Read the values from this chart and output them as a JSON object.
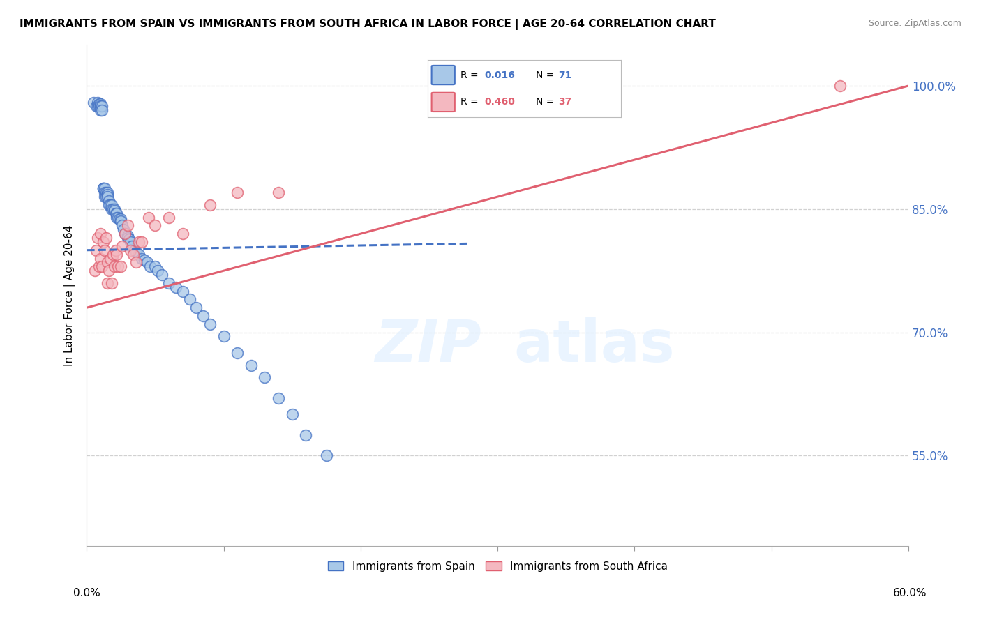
{
  "title": "IMMIGRANTS FROM SPAIN VS IMMIGRANTS FROM SOUTH AFRICA IN LABOR FORCE | AGE 20-64 CORRELATION CHART",
  "source": "Source: ZipAtlas.com",
  "ylabel": "In Labor Force | Age 20-64",
  "ytick_labels": [
    "100.0%",
    "85.0%",
    "70.0%",
    "55.0%"
  ],
  "ytick_values": [
    1.0,
    0.85,
    0.7,
    0.55
  ],
  "xmin": 0.0,
  "xmax": 0.6,
  "ymin": 0.44,
  "ymax": 1.05,
  "color_spain": "#a8c8e8",
  "color_south_africa": "#f4b8c0",
  "color_spain_edge": "#4472c4",
  "color_sa_edge": "#e06070",
  "color_spain_line": "#4472c4",
  "color_sa_line": "#e06070",
  "scatter_spain_x": [
    0.005,
    0.007,
    0.008,
    0.008,
    0.009,
    0.009,
    0.01,
    0.01,
    0.01,
    0.01,
    0.011,
    0.011,
    0.012,
    0.012,
    0.012,
    0.013,
    0.013,
    0.013,
    0.014,
    0.014,
    0.015,
    0.015,
    0.015,
    0.016,
    0.016,
    0.017,
    0.018,
    0.018,
    0.019,
    0.02,
    0.02,
    0.021,
    0.022,
    0.022,
    0.023,
    0.024,
    0.025,
    0.025,
    0.026,
    0.027,
    0.028,
    0.03,
    0.03,
    0.031,
    0.032,
    0.033,
    0.035,
    0.036,
    0.038,
    0.04,
    0.042,
    0.044,
    0.046,
    0.05,
    0.052,
    0.055,
    0.06,
    0.065,
    0.07,
    0.075,
    0.08,
    0.085,
    0.09,
    0.1,
    0.11,
    0.12,
    0.13,
    0.14,
    0.15,
    0.16,
    0.175
  ],
  "scatter_spain_y": [
    0.98,
    0.975,
    0.98,
    0.975,
    0.978,
    0.975,
    0.975,
    0.978,
    0.975,
    0.97,
    0.975,
    0.97,
    0.875,
    0.875,
    0.875,
    0.875,
    0.87,
    0.865,
    0.87,
    0.865,
    0.87,
    0.868,
    0.865,
    0.86,
    0.855,
    0.855,
    0.855,
    0.85,
    0.85,
    0.85,
    0.848,
    0.845,
    0.845,
    0.84,
    0.84,
    0.838,
    0.838,
    0.835,
    0.83,
    0.825,
    0.82,
    0.818,
    0.815,
    0.813,
    0.81,
    0.805,
    0.8,
    0.798,
    0.795,
    0.79,
    0.788,
    0.785,
    0.78,
    0.78,
    0.775,
    0.77,
    0.76,
    0.755,
    0.75,
    0.74,
    0.73,
    0.72,
    0.71,
    0.695,
    0.675,
    0.66,
    0.645,
    0.62,
    0.6,
    0.575,
    0.55
  ],
  "scatter_sa_x": [
    0.006,
    0.007,
    0.008,
    0.009,
    0.01,
    0.01,
    0.011,
    0.012,
    0.013,
    0.014,
    0.015,
    0.015,
    0.016,
    0.017,
    0.018,
    0.019,
    0.02,
    0.021,
    0.022,
    0.023,
    0.025,
    0.026,
    0.028,
    0.03,
    0.032,
    0.034,
    0.036,
    0.038,
    0.04,
    0.045,
    0.05,
    0.06,
    0.07,
    0.09,
    0.11,
    0.14,
    0.55
  ],
  "scatter_sa_y": [
    0.775,
    0.8,
    0.815,
    0.78,
    0.82,
    0.79,
    0.78,
    0.81,
    0.8,
    0.815,
    0.785,
    0.76,
    0.775,
    0.79,
    0.76,
    0.795,
    0.78,
    0.8,
    0.795,
    0.78,
    0.78,
    0.805,
    0.82,
    0.83,
    0.8,
    0.795,
    0.785,
    0.81,
    0.81,
    0.84,
    0.83,
    0.84,
    0.82,
    0.855,
    0.87,
    0.87,
    1.0
  ],
  "spain_line_x": [
    0.0,
    0.28
  ],
  "spain_line_y": [
    0.8,
    0.808
  ],
  "sa_line_x": [
    0.0,
    0.6
  ],
  "sa_line_y": [
    0.73,
    1.0
  ]
}
